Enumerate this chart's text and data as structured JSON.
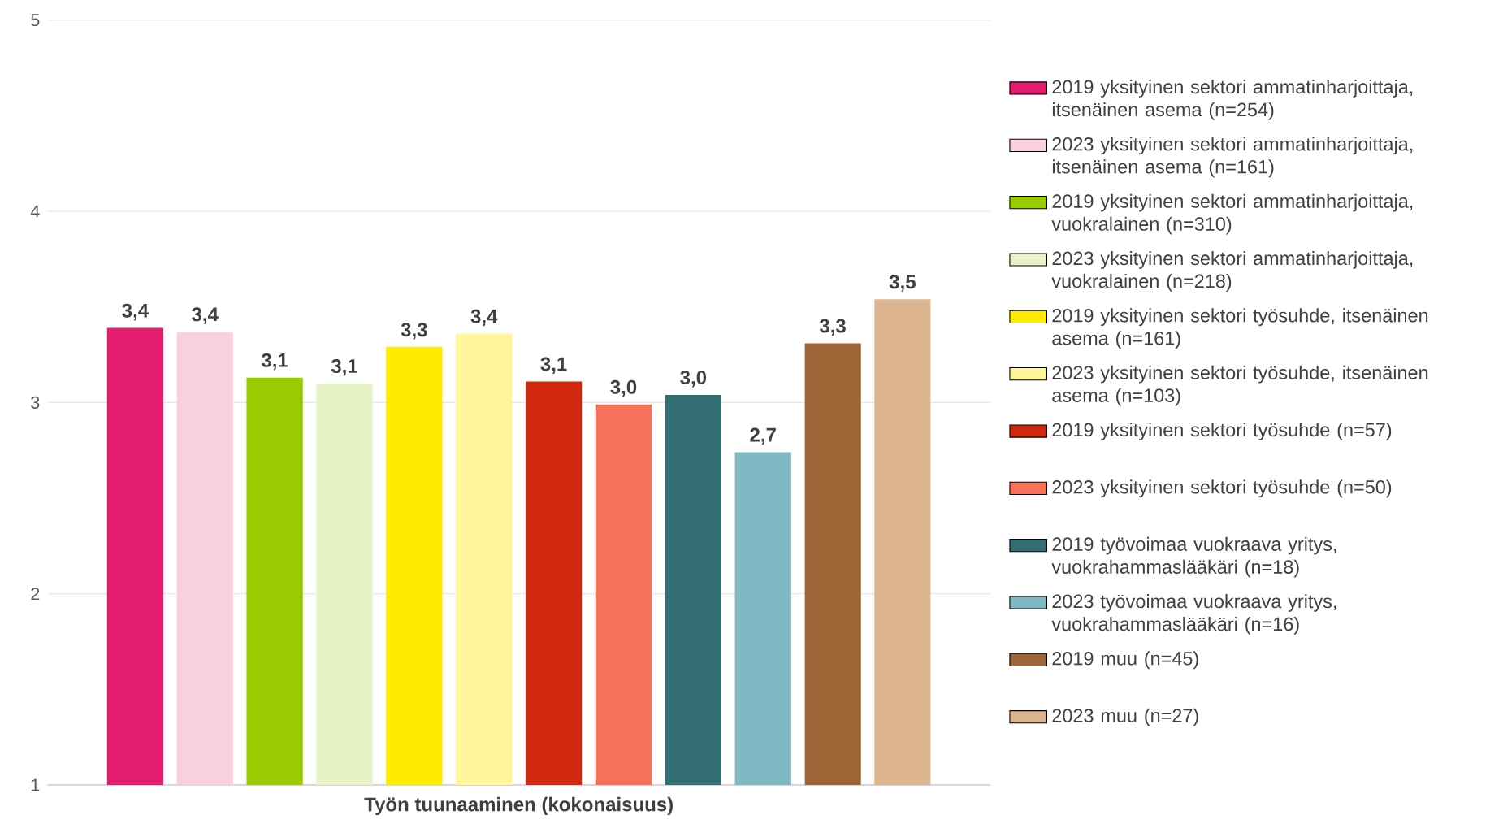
{
  "chart_data": {
    "type": "bar",
    "categories": [
      "Työn tuunaaminen (kokonaisuus)"
    ],
    "ylim": [
      1,
      5
    ],
    "yticks": [
      1,
      2,
      3,
      4,
      5
    ],
    "grid": "y",
    "legend": "right",
    "series": [
      {
        "name": "2019 yksityinen sektori ammatinharjoittaja, itsenäinen asema (n=254)",
        "color": "#e31c6d",
        "values": [
          3.39
        ],
        "value_labels": [
          "3,4"
        ]
      },
      {
        "name": "2023 yksityinen sektori ammatinharjoittaja, itsenäinen asema (n=161)",
        "color": "#f9d0e0",
        "values": [
          3.37
        ],
        "value_labels": [
          "3,4"
        ]
      },
      {
        "name": "2019 yksityinen sektori ammatinharjoittaja, vuokralainen (n=310)",
        "color": "#99cc00",
        "values": [
          3.13
        ],
        "value_labels": [
          "3,1"
        ]
      },
      {
        "name": "2023 yksityinen sektori ammatinharjoittaja, vuokralainen (n=218)",
        "color": "#e6f3c6",
        "values": [
          3.1
        ],
        "value_labels": [
          "3,1"
        ]
      },
      {
        "name": "2019 yksityinen sektori työsuhde, itsenäinen asema (n=161)",
        "color": "#ffeb00",
        "values": [
          3.29
        ],
        "value_labels": [
          "3,3"
        ]
      },
      {
        "name": "2023 yksityinen sektori työsuhde, itsenäinen asema (n=103)",
        "color": "#fff599",
        "values": [
          3.36
        ],
        "value_labels": [
          "3,4"
        ]
      },
      {
        "name": "2019 yksityinen sektori työsuhde (n=57)",
        "color": "#d0290f",
        "values": [
          3.11
        ],
        "value_labels": [
          "3,1"
        ]
      },
      {
        "name": "2023 yksityinen sektori työsuhde (n=50)",
        "color": "#f77059",
        "values": [
          2.99
        ],
        "value_labels": [
          "3,0"
        ]
      },
      {
        "name": "2019 työvoimaa vuokraava yritys, vuokrahammaslääkäri (n=18)",
        "color": "#336e73",
        "values": [
          3.04
        ],
        "value_labels": [
          "3,0"
        ]
      },
      {
        "name": "2023 työvoimaa vuokraava yritys, vuokrahammaslääkäri (n=16)",
        "color": "#7fbac4",
        "values": [
          2.74
        ],
        "value_labels": [
          "2,7"
        ]
      },
      {
        "name": "2019 muu (n=45)",
        "color": "#9e6636",
        "values": [
          3.31
        ],
        "value_labels": [
          "3,3"
        ]
      },
      {
        "name": "2023 muu (n=27)",
        "color": "#dcb48f",
        "values": [
          3.54
        ],
        "value_labels": [
          "3,5"
        ]
      }
    ]
  }
}
